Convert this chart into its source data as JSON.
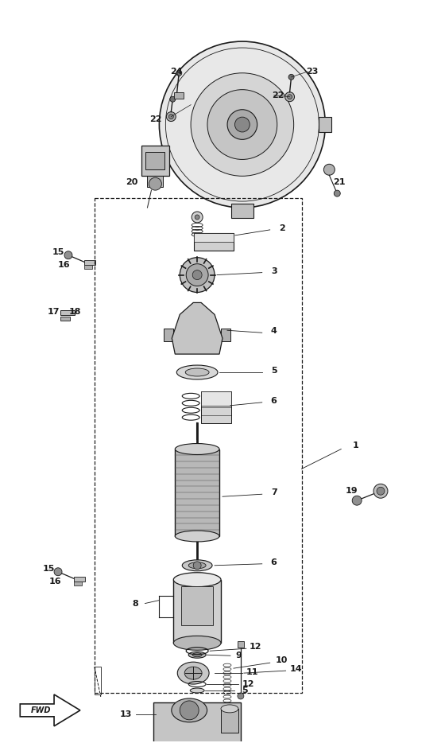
{
  "bg_color": "#ffffff",
  "line_color": "#1a1a1a",
  "fig_width": 5.6,
  "fig_height": 9.34,
  "dpi": 100
}
